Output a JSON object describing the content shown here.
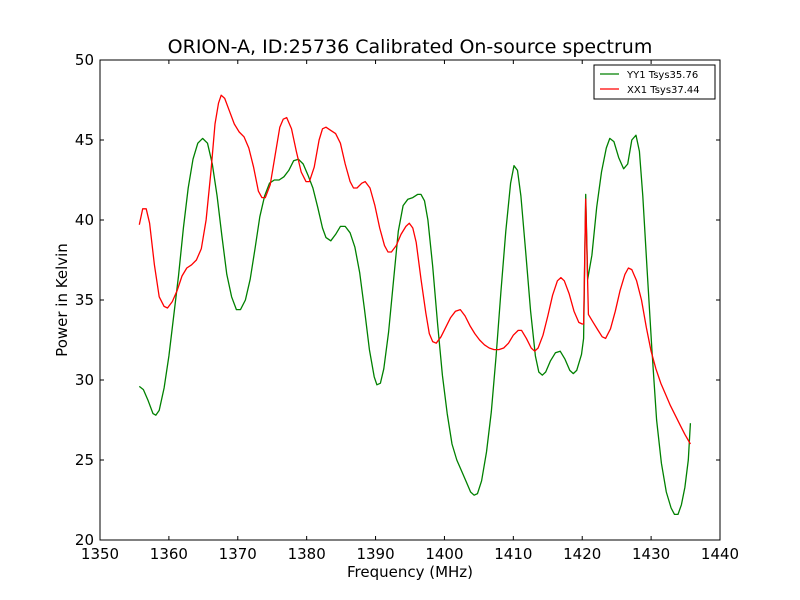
{
  "chart_data": {
    "type": "line",
    "title": "ORION-A, ID:25736 Calibrated On-source spectrum",
    "xlabel": "Frequency (MHz)",
    "ylabel": "Power in Kelvin",
    "xlim": [
      1350,
      1440
    ],
    "ylim": [
      20,
      50
    ],
    "xticks": [
      1350,
      1360,
      1370,
      1380,
      1390,
      1400,
      1410,
      1420,
      1430,
      1440
    ],
    "yticks": [
      20,
      25,
      30,
      35,
      40,
      45,
      50
    ],
    "grid": false,
    "legend_position": "top-right",
    "series": [
      {
        "name": "YY1 Tsys35.76",
        "color": "#008000",
        "points": [
          [
            1355.7,
            29.6
          ],
          [
            1356.3,
            29.4
          ],
          [
            1357.0,
            28.7
          ],
          [
            1357.7,
            27.9
          ],
          [
            1358.1,
            27.8
          ],
          [
            1358.6,
            28.1
          ],
          [
            1359.3,
            29.5
          ],
          [
            1360.0,
            31.5
          ],
          [
            1360.7,
            34.0
          ],
          [
            1361.4,
            36.5
          ],
          [
            1362.1,
            39.5
          ],
          [
            1362.8,
            42.0
          ],
          [
            1363.5,
            43.8
          ],
          [
            1364.2,
            44.8
          ],
          [
            1364.9,
            45.1
          ],
          [
            1365.6,
            44.8
          ],
          [
            1366.3,
            43.5
          ],
          [
            1367.0,
            41.5
          ],
          [
            1367.7,
            39.0
          ],
          [
            1368.4,
            36.6
          ],
          [
            1369.1,
            35.2
          ],
          [
            1369.8,
            34.4
          ],
          [
            1370.4,
            34.4
          ],
          [
            1371.1,
            35.0
          ],
          [
            1371.8,
            36.3
          ],
          [
            1372.5,
            38.2
          ],
          [
            1373.2,
            40.2
          ],
          [
            1373.9,
            41.5
          ],
          [
            1374.6,
            42.3
          ],
          [
            1375.3,
            42.5
          ],
          [
            1376.0,
            42.5
          ],
          [
            1376.7,
            42.7
          ],
          [
            1377.4,
            43.1
          ],
          [
            1378.1,
            43.7
          ],
          [
            1378.8,
            43.8
          ],
          [
            1379.5,
            43.5
          ],
          [
            1380.2,
            42.8
          ],
          [
            1380.9,
            42.0
          ],
          [
            1381.6,
            40.8
          ],
          [
            1382.3,
            39.5
          ],
          [
            1382.8,
            38.9
          ],
          [
            1383.5,
            38.7
          ],
          [
            1384.2,
            39.1
          ],
          [
            1384.9,
            39.6
          ],
          [
            1385.6,
            39.6
          ],
          [
            1386.3,
            39.2
          ],
          [
            1387.0,
            38.3
          ],
          [
            1387.7,
            36.7
          ],
          [
            1388.4,
            34.4
          ],
          [
            1389.1,
            31.9
          ],
          [
            1389.8,
            30.2
          ],
          [
            1390.2,
            29.7
          ],
          [
            1390.7,
            29.8
          ],
          [
            1391.2,
            30.7
          ],
          [
            1391.9,
            33.0
          ],
          [
            1392.6,
            36.2
          ],
          [
            1393.3,
            39.3
          ],
          [
            1394.0,
            40.9
          ],
          [
            1394.7,
            41.3
          ],
          [
            1395.4,
            41.4
          ],
          [
            1396.1,
            41.6
          ],
          [
            1396.6,
            41.6
          ],
          [
            1397.1,
            41.2
          ],
          [
            1397.6,
            40.0
          ],
          [
            1398.3,
            37.1
          ],
          [
            1399.0,
            33.5
          ],
          [
            1399.7,
            30.3
          ],
          [
            1400.4,
            27.9
          ],
          [
            1401.1,
            26.0
          ],
          [
            1401.8,
            25.0
          ],
          [
            1402.5,
            24.3
          ],
          [
            1403.2,
            23.6
          ],
          [
            1403.8,
            23.0
          ],
          [
            1404.3,
            22.8
          ],
          [
            1404.8,
            22.9
          ],
          [
            1405.4,
            23.7
          ],
          [
            1406.1,
            25.5
          ],
          [
            1406.8,
            28.0
          ],
          [
            1407.5,
            31.5
          ],
          [
            1408.2,
            35.5
          ],
          [
            1408.9,
            39.3
          ],
          [
            1409.6,
            42.3
          ],
          [
            1410.1,
            43.4
          ],
          [
            1410.6,
            43.1
          ],
          [
            1411.1,
            41.5
          ],
          [
            1411.8,
            38.0
          ],
          [
            1412.5,
            34.3
          ],
          [
            1413.2,
            31.5
          ],
          [
            1413.7,
            30.5
          ],
          [
            1414.2,
            30.3
          ],
          [
            1414.7,
            30.5
          ],
          [
            1415.4,
            31.2
          ],
          [
            1416.1,
            31.7
          ],
          [
            1416.8,
            31.8
          ],
          [
            1417.5,
            31.3
          ],
          [
            1418.2,
            30.6
          ],
          [
            1418.7,
            30.4
          ],
          [
            1419.2,
            30.6
          ],
          [
            1419.9,
            31.6
          ],
          [
            1420.2,
            32.6
          ],
          [
            1420.5,
            41.6
          ],
          [
            1420.8,
            36.3
          ],
          [
            1421.4,
            37.8
          ],
          [
            1422.1,
            40.8
          ],
          [
            1422.8,
            43.0
          ],
          [
            1423.5,
            44.5
          ],
          [
            1424.0,
            45.1
          ],
          [
            1424.6,
            44.9
          ],
          [
            1425.3,
            43.9
          ],
          [
            1426.0,
            43.2
          ],
          [
            1426.6,
            43.5
          ],
          [
            1427.2,
            45.0
          ],
          [
            1427.8,
            45.3
          ],
          [
            1428.3,
            44.3
          ],
          [
            1428.8,
            41.5
          ],
          [
            1429.4,
            37.0
          ],
          [
            1430.1,
            32.0
          ],
          [
            1430.8,
            27.5
          ],
          [
            1431.5,
            24.8
          ],
          [
            1432.2,
            23.0
          ],
          [
            1432.9,
            22.0
          ],
          [
            1433.4,
            21.6
          ],
          [
            1433.9,
            21.6
          ],
          [
            1434.4,
            22.2
          ],
          [
            1434.9,
            23.3
          ],
          [
            1435.4,
            25.0
          ],
          [
            1435.7,
            27.3
          ]
        ]
      },
      {
        "name": "XX1 Tsys37.44",
        "color": "#ff0000",
        "points": [
          [
            1355.7,
            39.7
          ],
          [
            1356.2,
            40.7
          ],
          [
            1356.7,
            40.7
          ],
          [
            1357.2,
            39.8
          ],
          [
            1357.9,
            37.2
          ],
          [
            1358.6,
            35.2
          ],
          [
            1359.3,
            34.6
          ],
          [
            1359.8,
            34.5
          ],
          [
            1360.5,
            34.9
          ],
          [
            1361.2,
            35.6
          ],
          [
            1361.9,
            36.5
          ],
          [
            1362.6,
            37.0
          ],
          [
            1363.3,
            37.2
          ],
          [
            1364.0,
            37.5
          ],
          [
            1364.7,
            38.2
          ],
          [
            1365.4,
            40.0
          ],
          [
            1366.1,
            43.0
          ],
          [
            1366.7,
            46.0
          ],
          [
            1367.2,
            47.3
          ],
          [
            1367.6,
            47.8
          ],
          [
            1368.1,
            47.6
          ],
          [
            1368.8,
            46.8
          ],
          [
            1369.5,
            46.0
          ],
          [
            1370.2,
            45.5
          ],
          [
            1370.9,
            45.2
          ],
          [
            1371.6,
            44.5
          ],
          [
            1372.3,
            43.3
          ],
          [
            1373.0,
            41.8
          ],
          [
            1373.5,
            41.4
          ],
          [
            1374.0,
            41.4
          ],
          [
            1374.7,
            42.2
          ],
          [
            1375.4,
            44.0
          ],
          [
            1376.1,
            45.8
          ],
          [
            1376.6,
            46.3
          ],
          [
            1377.1,
            46.4
          ],
          [
            1377.8,
            45.7
          ],
          [
            1378.5,
            44.3
          ],
          [
            1379.2,
            43.0
          ],
          [
            1379.9,
            42.4
          ],
          [
            1380.4,
            42.4
          ],
          [
            1381.1,
            43.3
          ],
          [
            1381.8,
            45.0
          ],
          [
            1382.3,
            45.7
          ],
          [
            1382.8,
            45.8
          ],
          [
            1383.5,
            45.6
          ],
          [
            1384.2,
            45.4
          ],
          [
            1384.9,
            44.8
          ],
          [
            1385.6,
            43.5
          ],
          [
            1386.3,
            42.4
          ],
          [
            1386.8,
            42.0
          ],
          [
            1387.3,
            42.0
          ],
          [
            1388.0,
            42.3
          ],
          [
            1388.5,
            42.4
          ],
          [
            1389.2,
            42.0
          ],
          [
            1389.9,
            40.9
          ],
          [
            1390.6,
            39.5
          ],
          [
            1391.3,
            38.4
          ],
          [
            1391.8,
            38.0
          ],
          [
            1392.3,
            38.0
          ],
          [
            1393.0,
            38.4
          ],
          [
            1393.7,
            39.1
          ],
          [
            1394.4,
            39.6
          ],
          [
            1394.9,
            39.8
          ],
          [
            1395.4,
            39.5
          ],
          [
            1395.9,
            38.6
          ],
          [
            1396.6,
            36.3
          ],
          [
            1397.3,
            34.2
          ],
          [
            1397.8,
            32.9
          ],
          [
            1398.3,
            32.4
          ],
          [
            1398.8,
            32.3
          ],
          [
            1399.5,
            32.7
          ],
          [
            1400.2,
            33.3
          ],
          [
            1400.9,
            33.9
          ],
          [
            1401.6,
            34.3
          ],
          [
            1402.3,
            34.4
          ],
          [
            1403.0,
            34.0
          ],
          [
            1403.7,
            33.4
          ],
          [
            1404.4,
            32.9
          ],
          [
            1405.1,
            32.5
          ],
          [
            1405.8,
            32.2
          ],
          [
            1406.5,
            32.0
          ],
          [
            1407.2,
            31.9
          ],
          [
            1407.9,
            31.9
          ],
          [
            1408.6,
            32.0
          ],
          [
            1409.3,
            32.3
          ],
          [
            1410.0,
            32.8
          ],
          [
            1410.7,
            33.1
          ],
          [
            1411.2,
            33.1
          ],
          [
            1411.9,
            32.6
          ],
          [
            1412.6,
            32.0
          ],
          [
            1413.1,
            31.8
          ],
          [
            1413.6,
            32.0
          ],
          [
            1414.3,
            32.8
          ],
          [
            1415.0,
            34.0
          ],
          [
            1415.7,
            35.3
          ],
          [
            1416.4,
            36.2
          ],
          [
            1416.9,
            36.4
          ],
          [
            1417.4,
            36.2
          ],
          [
            1418.1,
            35.4
          ],
          [
            1418.8,
            34.3
          ],
          [
            1419.5,
            33.6
          ],
          [
            1420.0,
            33.5
          ],
          [
            1420.2,
            33.5
          ],
          [
            1420.5,
            41.3
          ],
          [
            1420.9,
            34.1
          ],
          [
            1421.6,
            33.6
          ],
          [
            1422.3,
            33.1
          ],
          [
            1422.9,
            32.7
          ],
          [
            1423.4,
            32.6
          ],
          [
            1424.1,
            33.2
          ],
          [
            1424.8,
            34.3
          ],
          [
            1425.5,
            35.6
          ],
          [
            1426.2,
            36.6
          ],
          [
            1426.7,
            37.0
          ],
          [
            1427.2,
            36.9
          ],
          [
            1427.9,
            36.2
          ],
          [
            1428.6,
            35.0
          ],
          [
            1429.3,
            33.3
          ],
          [
            1430.0,
            31.8
          ],
          [
            1430.7,
            30.7
          ],
          [
            1431.4,
            29.8
          ],
          [
            1432.1,
            29.1
          ],
          [
            1432.8,
            28.4
          ],
          [
            1433.5,
            27.8
          ],
          [
            1434.2,
            27.2
          ],
          [
            1434.9,
            26.6
          ],
          [
            1435.7,
            26.0
          ]
        ]
      }
    ]
  }
}
